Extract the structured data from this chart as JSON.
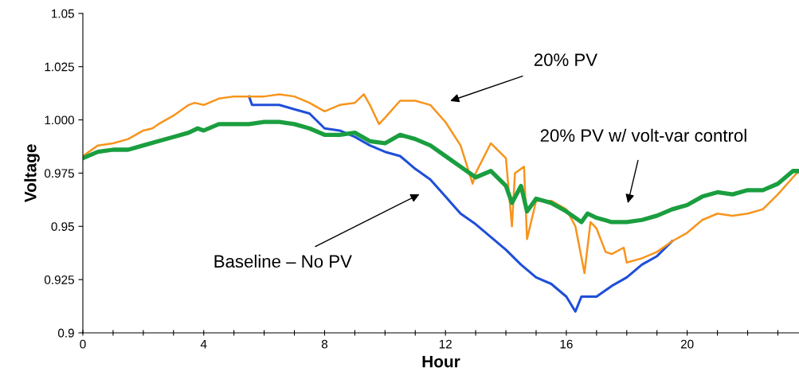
{
  "chart_data": {
    "type": "line",
    "xlabel": "Hour",
    "ylabel": "Voltage",
    "xlim": [
      0,
      23.7
    ],
    "ylim": [
      0.9,
      1.05
    ],
    "xticks": [
      0,
      {
        "value": 1,
        "label": null
      },
      {
        "value": 2,
        "label": null
      },
      {
        "value": 3,
        "label": null
      },
      4,
      {
        "value": 5,
        "label": null
      },
      {
        "value": 6,
        "label": null
      },
      {
        "value": 7,
        "label": null
      },
      8,
      {
        "value": 9,
        "label": null
      },
      {
        "value": 10,
        "label": null
      },
      {
        "value": 11,
        "label": null
      },
      12,
      {
        "value": 13,
        "label": null
      },
      {
        "value": 14,
        "label": null
      },
      {
        "value": 15,
        "label": null
      },
      16,
      {
        "value": 17,
        "label": null
      },
      {
        "value": 18,
        "label": null
      },
      {
        "value": 19,
        "label": null
      },
      20,
      {
        "value": 21,
        "label": null
      },
      {
        "value": 22,
        "label": null
      },
      {
        "value": 23,
        "label": null
      }
    ],
    "yticks": [
      0.9,
      0.925,
      0.95,
      0.975,
      {
        "value": 1.0,
        "label": "1.000"
      },
      1.025,
      1.05
    ],
    "grid": false,
    "legend": false,
    "marker": "none",
    "line_style": "solid",
    "series": [
      {
        "color": "#1f4fd8",
        "x": [
          5.5,
          5.6,
          6,
          6.5,
          7,
          7.5,
          8,
          8.5,
          9,
          9.5,
          10,
          10.5,
          11,
          11.5,
          12,
          12.5,
          13,
          13.5,
          14,
          14.5,
          15,
          15.5,
          16,
          16.3,
          16.5,
          17,
          17.5,
          18,
          18.5,
          19,
          19.5
        ],
        "values": [
          1.011,
          1.007,
          1.007,
          1.007,
          1.005,
          1.003,
          0.996,
          0.995,
          0.992,
          0.988,
          0.985,
          0.983,
          0.977,
          0.972,
          0.964,
          0.956,
          0.951,
          0.945,
          0.939,
          0.932,
          0.926,
          0.923,
          0.917,
          0.91,
          0.917,
          0.917,
          0.922,
          0.926,
          0.932,
          0.936,
          0.943
        ]
      },
      {
        "color": "#f7941d",
        "x": [
          0,
          0.5,
          1,
          1.5,
          2,
          2.3,
          2.5,
          3,
          3.5,
          3.7,
          4,
          4.5,
          5,
          5.5,
          6,
          6.5,
          7,
          7.5,
          8,
          8.5,
          9,
          9.3,
          9.5,
          9.8,
          10,
          10.5,
          11,
          11.5,
          12,
          12.5,
          12.9,
          13,
          13.5,
          14,
          14.2,
          14.3,
          14.6,
          14.7,
          15,
          15.5,
          16,
          16.3,
          16.6,
          16.8,
          17,
          17.3,
          17.5,
          17.9,
          18,
          18.5,
          19,
          19.5,
          20,
          20.5,
          21,
          21.5,
          22,
          22.5,
          23,
          23.5,
          23.7
        ],
        "values": [
          0.983,
          0.988,
          0.989,
          0.991,
          0.995,
          0.996,
          0.998,
          1.002,
          1.007,
          1.008,
          1.007,
          1.01,
          1.011,
          1.011,
          1.011,
          1.012,
          1.011,
          1.008,
          1.004,
          1.007,
          1.008,
          1.012,
          1.007,
          0.998,
          1.001,
          1.009,
          1.009,
          1.007,
          0.999,
          0.988,
          0.97,
          0.975,
          0.989,
          0.982,
          0.95,
          0.975,
          0.978,
          0.944,
          0.962,
          0.962,
          0.958,
          0.95,
          0.928,
          0.952,
          0.949,
          0.938,
          0.937,
          0.94,
          0.933,
          0.935,
          0.938,
          0.943,
          0.947,
          0.953,
          0.956,
          0.955,
          0.956,
          0.958,
          0.965,
          0.973,
          0.976
        ]
      },
      {
        "color": "#1a9e3f",
        "x": [
          0,
          0.5,
          1,
          1.5,
          2,
          2.5,
          3,
          3.5,
          3.8,
          4,
          4.5,
          5,
          5.5,
          6,
          6.5,
          7,
          7.5,
          8,
          8.5,
          9,
          9.5,
          10,
          10.5,
          11,
          11.5,
          12,
          12.5,
          13,
          13.5,
          14,
          14.2,
          14.5,
          14.7,
          15,
          15.5,
          16,
          16.5,
          16.7,
          17,
          17.5,
          18,
          18.5,
          19,
          19.5,
          20,
          20.5,
          21,
          21.5,
          22,
          22.5,
          23,
          23.5,
          23.7
        ],
        "values": [
          0.982,
          0.985,
          0.986,
          0.986,
          0.988,
          0.99,
          0.992,
          0.994,
          0.996,
          0.995,
          0.998,
          0.998,
          0.998,
          0.999,
          0.999,
          0.998,
          0.996,
          0.993,
          0.993,
          0.994,
          0.99,
          0.989,
          0.993,
          0.991,
          0.988,
          0.983,
          0.978,
          0.973,
          0.976,
          0.969,
          0.961,
          0.969,
          0.957,
          0.963,
          0.961,
          0.957,
          0.952,
          0.956,
          0.954,
          0.952,
          0.952,
          0.953,
          0.955,
          0.958,
          0.96,
          0.964,
          0.966,
          0.965,
          0.967,
          0.967,
          0.97,
          0.976,
          0.976
        ]
      }
    ],
    "annotations": [
      "20% PV",
      "20% PV w/ volt-var control",
      "Baseline – No PV"
    ]
  }
}
